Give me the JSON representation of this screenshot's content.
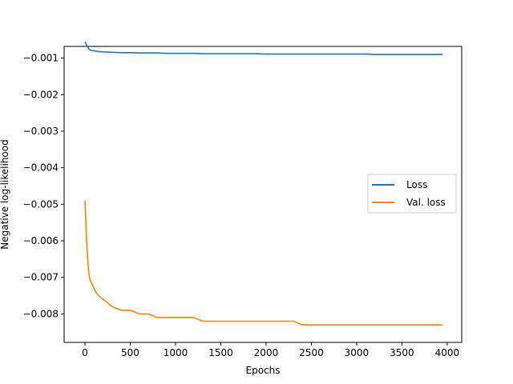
{
  "chart_data": {
    "type": "line",
    "title": "",
    "xlabel": "Epochs",
    "ylabel": "Negative log-likelihood",
    "xlim": [
      -230,
      4160
    ],
    "ylim": [
      -0.00878,
      -0.00068
    ],
    "xticks": [
      0,
      500,
      1000,
      1500,
      2000,
      2500,
      3000,
      3500,
      4000
    ],
    "yticks": [
      -0.001,
      -0.002,
      -0.003,
      -0.004,
      -0.005,
      -0.006,
      -0.007,
      -0.008
    ],
    "xtick_labels": [
      "0",
      "500",
      "1000",
      "1500",
      "2000",
      "2500",
      "3000",
      "3500",
      "4000"
    ],
    "ytick_labels": [
      "−0.001",
      "−0.002",
      "−0.003",
      "−0.004",
      "−0.005",
      "−0.006",
      "−0.007",
      "−0.008"
    ],
    "grid": false,
    "legend_position": "center-right",
    "series": [
      {
        "name": "Loss",
        "color": "#1f77b4",
        "x": [
          0,
          20,
          40,
          60,
          80,
          100,
          150,
          200,
          300,
          400,
          500,
          600,
          700,
          800,
          900,
          1000,
          1100,
          1200,
          1300,
          1400,
          1500,
          1600,
          1700,
          1800,
          1900,
          2000,
          2100,
          2200,
          2300,
          2400,
          2500,
          2600,
          2700,
          2800,
          2900,
          3000,
          3100,
          3200,
          3300,
          3400,
          3500,
          3600,
          3700,
          3800,
          3900,
          3950
        ],
        "y": [
          -0.00055,
          -0.00065,
          -0.00074,
          -0.00078,
          -0.0008,
          -0.0008,
          -0.00082,
          -0.00083,
          -0.00084,
          -0.00085,
          -0.00085,
          -0.00086,
          -0.00086,
          -0.00086,
          -0.00087,
          -0.00087,
          -0.00087,
          -0.00087,
          -0.00088,
          -0.00088,
          -0.00088,
          -0.00088,
          -0.00088,
          -0.00088,
          -0.00088,
          -0.00089,
          -0.00089,
          -0.00089,
          -0.00089,
          -0.00089,
          -0.00089,
          -0.00089,
          -0.00089,
          -0.00089,
          -0.00089,
          -0.00089,
          -0.00089,
          -0.0009,
          -0.0009,
          -0.0009,
          -0.0009,
          -0.0009,
          -0.0009,
          -0.0009,
          -0.0009,
          -0.0009
        ]
      },
      {
        "name": "Val. loss",
        "color": "#ff7f0e",
        "x": [
          0,
          10,
          20,
          30,
          40,
          50,
          60,
          80,
          100,
          120,
          150,
          200,
          250,
          300,
          400,
          500,
          600,
          700,
          800,
          900,
          1000,
          1100,
          1200,
          1300,
          1400,
          1500,
          1600,
          1700,
          1800,
          1900,
          2000,
          2100,
          2200,
          2300,
          2400,
          2500,
          2600,
          2700,
          2800,
          2900,
          3000,
          3100,
          3200,
          3300,
          3400,
          3500,
          3600,
          3700,
          3800,
          3900,
          3950
        ],
        "y": [
          -0.0049,
          -0.0055,
          -0.0061,
          -0.0065,
          -0.0068,
          -0.007,
          -0.0071,
          -0.0072,
          -0.0073,
          -0.0074,
          -0.0075,
          -0.0076,
          -0.0077,
          -0.0078,
          -0.0079,
          -0.0079,
          -0.008,
          -0.008,
          -0.0081,
          -0.0081,
          -0.0081,
          -0.0081,
          -0.0081,
          -0.0082,
          -0.0082,
          -0.0082,
          -0.0082,
          -0.0082,
          -0.0082,
          -0.0082,
          -0.0082,
          -0.0082,
          -0.0082,
          -0.0082,
          -0.0083,
          -0.0083,
          -0.0083,
          -0.0083,
          -0.0083,
          -0.0083,
          -0.0083,
          -0.0083,
          -0.0083,
          -0.0083,
          -0.0083,
          -0.0083,
          -0.0083,
          -0.0083,
          -0.0083,
          -0.0083,
          -0.0083
        ]
      }
    ]
  }
}
